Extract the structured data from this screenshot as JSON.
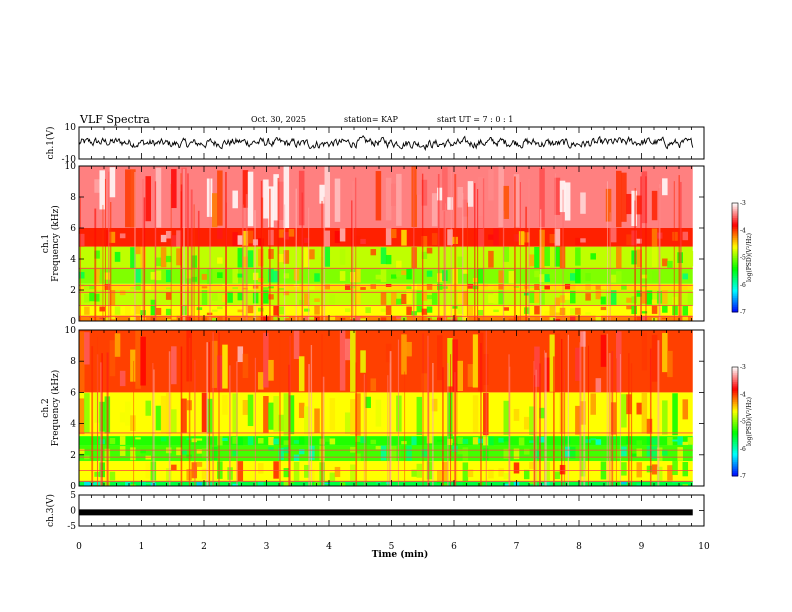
{
  "header": {
    "title": "VLF Spectra",
    "date": "Oct. 30, 2025",
    "station": "station= KAP",
    "start": "start  UT =   7 : 0  : 1"
  },
  "colors": {
    "colormap": [
      "#0000ff",
      "#00ffff",
      "#00ff00",
      "#ffff00",
      "#ff0000",
      "#ffffff"
    ],
    "trace": "#000000"
  },
  "chart_data": [
    {
      "type": "line",
      "name": "ch1-waveform",
      "ylabel": "ch.1(V)",
      "ylim": [
        -10,
        10
      ],
      "yticks": [
        "10",
        "-10"
      ],
      "xlim": [
        0,
        10
      ],
      "description_values": "noisy waveform between about -4 and 4 V over 0 to 9.8 min"
    },
    {
      "type": "heatmap",
      "name": "ch1-spectrogram",
      "ylabel": "ch.1\nFrequency (kHz)",
      "ylim": [
        0,
        10
      ],
      "yticks": [
        "0",
        "2",
        "4",
        "6",
        "8",
        "10"
      ],
      "xlim": [
        0,
        10
      ],
      "x_extent": [
        0,
        9.82
      ],
      "bands_khz": [
        {
          "from": 0.0,
          "to": 0.35,
          "level": -4.2
        },
        {
          "from": 0.35,
          "to": 1.0,
          "level": -4.6
        },
        {
          "from": 1.0,
          "to": 2.0,
          "level": -4.8
        },
        {
          "from": 2.0,
          "to": 2.4,
          "level": -4.5
        },
        {
          "from": 2.4,
          "to": 3.4,
          "level": -5.0
        },
        {
          "from": 3.4,
          "to": 4.8,
          "level": -4.8
        },
        {
          "from": 4.8,
          "to": 6.0,
          "level": -3.9
        },
        {
          "from": 6.0,
          "to": 10.0,
          "level": -3.4
        }
      ],
      "colorbar": {
        "label": "log(PSD)(V²/Hz)",
        "ticks": [
          "-3",
          "-4",
          "-5",
          "-6",
          "-7"
        ],
        "range": [
          -7,
          -3
        ]
      }
    },
    {
      "type": "heatmap",
      "name": "ch2-spectrogram",
      "ylabel": "ch.2\nFrequency (kHz)",
      "ylim": [
        0,
        10
      ],
      "yticks": [
        "0",
        "2",
        "4",
        "6",
        "8",
        "10"
      ],
      "xlim": [
        0,
        10
      ],
      "x_extent": [
        0,
        9.82
      ],
      "bands_khz": [
        {
          "from": 0.0,
          "to": 0.3,
          "level": -5.6
        },
        {
          "from": 0.3,
          "to": 1.6,
          "level": -4.6
        },
        {
          "from": 1.6,
          "to": 2.6,
          "level": -5.2
        },
        {
          "from": 2.6,
          "to": 3.2,
          "level": -5.3
        },
        {
          "from": 3.2,
          "to": 6.0,
          "level": -4.6
        },
        {
          "from": 6.0,
          "to": 10.0,
          "level": -4.0
        }
      ],
      "colorbar": {
        "label": "log(PSD)(V²/Hz)",
        "ticks": [
          "-3",
          "-4",
          "-5",
          "-6",
          "-7"
        ],
        "range": [
          -7,
          -3
        ]
      }
    },
    {
      "type": "line",
      "name": "ch3-waveform",
      "ylabel": "ch.3(V)",
      "ylim": [
        -5,
        5
      ],
      "yticks": [
        "5",
        "0",
        "-5"
      ],
      "xlim": [
        0,
        10
      ],
      "value": -0.6,
      "xlabel": "Time (min)",
      "xticks": [
        "0",
        "1",
        "2",
        "3",
        "4",
        "5",
        "6",
        "7",
        "8",
        "9",
        "10"
      ]
    }
  ]
}
